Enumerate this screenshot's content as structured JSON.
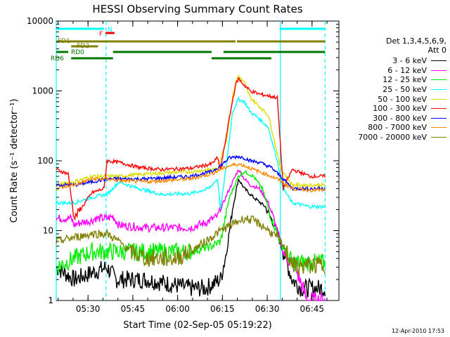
{
  "chart_data": {
    "type": "line",
    "title": "HESSI Observing Summary Count Rates",
    "xlabel": "Start Time (02-Sep-05 05:19:22)",
    "ylabel": "Count Rate (s⁻¹ detector⁻¹)",
    "yscale": "log",
    "ylim": [
      1,
      10000
    ],
    "xlim": [
      "05:19:22",
      "06:54:00"
    ],
    "x_ticks": [
      "05:30",
      "05:45",
      "06:00",
      "06:15",
      "06:30",
      "06:45"
    ],
    "y_ticks": [
      "1",
      "10",
      "100",
      "1000",
      "10000"
    ],
    "timestamp": "12-Apr-2010 17:53",
    "legend": {
      "header_line1": "Det 1,3,4,5,6,9,",
      "header_line2": "Att 0",
      "placement": "right"
    },
    "series": [
      {
        "name": "3 - 6 keV",
        "color": "#000000",
        "values": [
          [
            0,
            3
          ],
          [
            6,
            2
          ],
          [
            12,
            2.5
          ],
          [
            17,
            3
          ],
          [
            20,
            2
          ],
          [
            30,
            2
          ],
          [
            45,
            1.5
          ],
          [
            50,
            1.5
          ],
          [
            55,
            2
          ],
          [
            57,
            5
          ],
          [
            59,
            20
          ],
          [
            61,
            55
          ],
          [
            63,
            40
          ],
          [
            66,
            30
          ],
          [
            70,
            22
          ],
          [
            73,
            12
          ],
          [
            76,
            5
          ],
          [
            79,
            2
          ],
          [
            82,
            1.5
          ]
        ]
      },
      {
        "name": "6 - 12 keV",
        "color": "#ff00ff",
        "values": [
          [
            0,
            15
          ],
          [
            5,
            15
          ],
          [
            6,
            12
          ],
          [
            8,
            13
          ],
          [
            12,
            14
          ],
          [
            13,
            15
          ],
          [
            17,
            15
          ],
          [
            19,
            16
          ],
          [
            21,
            12
          ],
          [
            30,
            11
          ],
          [
            45,
            11
          ],
          [
            50,
            13
          ],
          [
            54,
            16
          ],
          [
            58,
            40
          ],
          [
            61,
            75
          ],
          [
            63,
            55
          ],
          [
            65,
            45
          ],
          [
            68,
            40
          ],
          [
            71,
            25
          ],
          [
            73,
            14
          ],
          [
            76,
            5
          ],
          [
            80,
            3
          ],
          [
            84,
            1
          ],
          [
            86,
            1
          ]
        ]
      },
      {
        "name": "12 - 25 keV",
        "color": "#00ee00",
        "values": [
          [
            0,
            3
          ],
          [
            6,
            4
          ],
          [
            12,
            5
          ],
          [
            17,
            5
          ],
          [
            20,
            5
          ],
          [
            30,
            5
          ],
          [
            45,
            5
          ],
          [
            52,
            6
          ],
          [
            55,
            7
          ],
          [
            58,
            30
          ],
          [
            61,
            60
          ],
          [
            63,
            70
          ],
          [
            66,
            60
          ],
          [
            69,
            40
          ],
          [
            72,
            15
          ],
          [
            75,
            7
          ],
          [
            79,
            3.5
          ],
          [
            82,
            3.5
          ],
          [
            90,
            3.5
          ]
        ]
      },
      {
        "name": "25 - 50 keV",
        "color": "#00ffff",
        "values": [
          [
            0,
            25
          ],
          [
            6,
            25
          ],
          [
            12,
            30
          ],
          [
            17,
            33
          ],
          [
            21,
            50
          ],
          [
            26,
            42
          ],
          [
            35,
            33
          ],
          [
            45,
            34
          ],
          [
            51,
            40
          ],
          [
            54,
            55
          ],
          [
            55,
            20
          ],
          [
            57,
            90
          ],
          [
            59,
            500
          ],
          [
            61,
            760
          ],
          [
            63,
            700
          ],
          [
            65,
            500
          ],
          [
            68,
            400
          ],
          [
            71,
            300
          ],
          [
            74,
            100
          ],
          [
            76,
            40
          ],
          [
            79,
            25
          ],
          [
            85,
            22
          ],
          [
            90,
            22
          ]
        ]
      },
      {
        "name": "50 - 100 keV",
        "color": "#dddd00",
        "values": [
          [
            0,
            45
          ],
          [
            6,
            50
          ],
          [
            12,
            60
          ],
          [
            17,
            60
          ],
          [
            21,
            60
          ],
          [
            30,
            65
          ],
          [
            45,
            70
          ],
          [
            52,
            75
          ],
          [
            54,
            75
          ],
          [
            57,
            200
          ],
          [
            59,
            800
          ],
          [
            60,
            1300
          ],
          [
            61,
            1650
          ],
          [
            63,
            1300
          ],
          [
            65,
            800
          ],
          [
            68,
            600
          ],
          [
            71,
            450
          ],
          [
            73,
            200
          ],
          [
            75,
            80
          ],
          [
            79,
            45
          ],
          [
            85,
            45
          ],
          [
            90,
            45
          ]
        ]
      },
      {
        "name": "100 - 300 keV",
        "color": "#ff0000",
        "values": [
          [
            0,
            75
          ],
          [
            4,
            65
          ],
          [
            6,
            15
          ],
          [
            12,
            35
          ],
          [
            16,
            40
          ],
          [
            17,
            100
          ],
          [
            21,
            95
          ],
          [
            28,
            80
          ],
          [
            35,
            75
          ],
          [
            45,
            78
          ],
          [
            52,
            90
          ],
          [
            54,
            110
          ],
          [
            55,
            75
          ],
          [
            58,
            420
          ],
          [
            60,
            1200
          ],
          [
            61,
            1500
          ],
          [
            63,
            1200
          ],
          [
            65,
            1000
          ],
          [
            68,
            900
          ],
          [
            71,
            850
          ],
          [
            74,
            800
          ],
          [
            76,
            40
          ],
          [
            79,
            75
          ],
          [
            85,
            60
          ],
          [
            90,
            60
          ]
        ]
      },
      {
        "name": "300 - 800 keV",
        "color": "#0000ff",
        "values": [
          [
            0,
            45
          ],
          [
            6,
            45
          ],
          [
            12,
            50
          ],
          [
            17,
            55
          ],
          [
            21,
            55
          ],
          [
            30,
            55
          ],
          [
            45,
            60
          ],
          [
            52,
            70
          ],
          [
            55,
            85
          ],
          [
            58,
            110
          ],
          [
            61,
            115
          ],
          [
            63,
            110
          ],
          [
            65,
            100
          ],
          [
            68,
            95
          ],
          [
            72,
            80
          ],
          [
            76,
            55
          ],
          [
            79,
            40
          ],
          [
            85,
            40
          ],
          [
            90,
            40
          ]
        ]
      },
      {
        "name": "800 - 7000 keV",
        "color": "#ff8800",
        "values": [
          [
            0,
            40
          ],
          [
            6,
            45
          ],
          [
            12,
            55
          ],
          [
            17,
            55
          ],
          [
            21,
            52
          ],
          [
            30,
            50
          ],
          [
            45,
            55
          ],
          [
            52,
            65
          ],
          [
            55,
            75
          ],
          [
            58,
            85
          ],
          [
            61,
            90
          ],
          [
            63,
            85
          ],
          [
            66,
            75
          ],
          [
            70,
            65
          ],
          [
            74,
            55
          ],
          [
            79,
            40
          ],
          [
            85,
            38
          ],
          [
            90,
            38
          ]
        ]
      },
      {
        "name": "7000 - 20000 keV",
        "color": "#808000",
        "values": [
          [
            0,
            7
          ],
          [
            6,
            8
          ],
          [
            12,
            9
          ],
          [
            17,
            9
          ],
          [
            21,
            7
          ],
          [
            25,
            5
          ],
          [
            30,
            4
          ],
          [
            40,
            4
          ],
          [
            45,
            5
          ],
          [
            50,
            7
          ],
          [
            55,
            10
          ],
          [
            60,
            13
          ],
          [
            63,
            15
          ],
          [
            66,
            14
          ],
          [
            70,
            11
          ],
          [
            74,
            8
          ],
          [
            77,
            5
          ],
          [
            80,
            3
          ],
          [
            85,
            3.2
          ],
          [
            90,
            3.2
          ]
        ]
      }
    ],
    "state_bars": [
      {
        "label": "N",
        "color": "#00ffff",
        "segments": [
          [
            0,
            16
          ],
          [
            75,
            90
          ]
        ]
      },
      {
        "label": "F",
        "color": "#ff0000",
        "segments": [
          [
            16.5,
            19.5
          ]
        ]
      },
      {
        "label": "FD1",
        "color": "#808000",
        "segments": [
          [
            0,
            60
          ],
          [
            60.5,
            90
          ]
        ]
      },
      {
        "label": "FD2",
        "color": "#808000",
        "segments": [
          [
            5,
            14
          ]
        ]
      },
      {
        "label": "RD0",
        "color": "#007700",
        "segments": [
          [
            0,
            4
          ],
          [
            19,
            52
          ],
          [
            56,
            90
          ]
        ]
      },
      {
        "label": "RD6",
        "color": "#007700",
        "segments": [
          [
            5,
            19
          ],
          [
            52,
            72
          ]
        ]
      }
    ],
    "vertical_markers": [
      {
        "x": 0,
        "color": "#00ffff",
        "style": "solid"
      },
      {
        "x": 16.7,
        "color": "#00ffff",
        "style": "dashed"
      },
      {
        "x": 75,
        "color": "#00ffff",
        "style": "solid"
      },
      {
        "x": 90,
        "color": "#00ffff",
        "style": "dashed"
      }
    ]
  }
}
